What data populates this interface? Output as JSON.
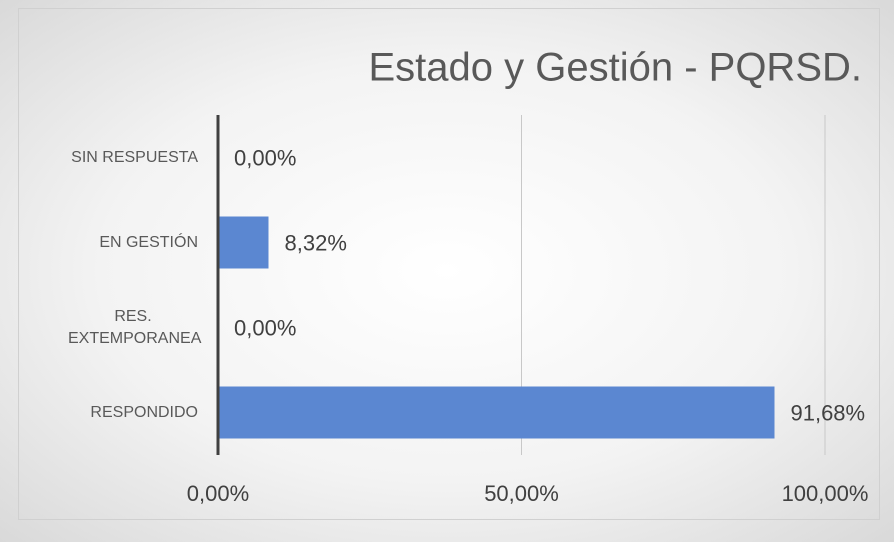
{
  "chart_data": {
    "type": "bar",
    "orientation": "horizontal",
    "title": "Estado y Gestión - PQRSD.",
    "categories": [
      "SIN RESPUESTA",
      "EN GESTIÓN",
      "RES. EXTEMPORANEA",
      "RESPONDIDO"
    ],
    "values": [
      0,
      8.32,
      0,
      91.68
    ],
    "value_labels": [
      "0,00%",
      "8,32%",
      "0,00%",
      "91,68%"
    ],
    "color": "#5b87d1",
    "xlim": [
      0,
      100
    ],
    "xticks": [
      {
        "value": 0,
        "label": "0,00%"
      },
      {
        "value": 50,
        "label": "50,00%"
      },
      {
        "value": 100,
        "label": "100,00%"
      }
    ],
    "grid": true
  }
}
